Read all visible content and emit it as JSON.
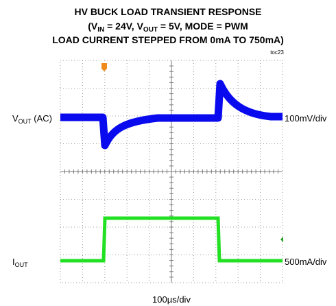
{
  "title": {
    "line1": "HV BUCK LOAD TRANSIENT RESPONSE",
    "line2": {
      "p1": "(V",
      "p2": "IN",
      "p3": " = 24V, V",
      "p4": "OUT",
      "p5": " = 5V, MODE = PWM"
    },
    "line3": "LOAD CURRENT STEPPED FROM 0mA TO 750mA)"
  },
  "figure_id": "toc23",
  "channels": [
    {
      "label": {
        "main": "V",
        "sub": "OUT",
        "rest": " (AC)"
      },
      "scale": "100mV/div"
    },
    {
      "label": {
        "main": "I",
        "sub": "OUT"
      },
      "scale": "500mA/div"
    }
  ],
  "timebase": "100µs/div"
}
